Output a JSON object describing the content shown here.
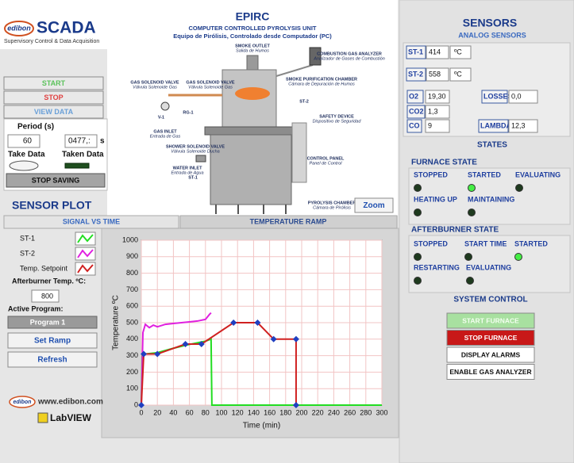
{
  "header": {
    "brand": "edibon",
    "title": "SCADA",
    "subtitle": "Supervisory Control & Data Acquisition"
  },
  "controls": {
    "start": "START",
    "stop": "STOP",
    "view_data": "VIEW DATA",
    "period_label": "Period (s)",
    "period_value": "60",
    "elapsed_value": "0477,:",
    "elapsed_unit": "s",
    "take_data": "Take Data",
    "taken_data": "Taken Data",
    "stop_saving": "STOP SAVING"
  },
  "diagram": {
    "title": "EPIRC",
    "subtitle": "COMPUTER CONTROLLED PYROLYSIS UNIT",
    "subtitle_es": "Equipo de Pirólisis, Controlado desde Computador (PC)",
    "labels": [
      {
        "en": "SMOKE OUTLET",
        "es": "Salida de Humos"
      },
      {
        "en": "COMBUSTION GAS ANALYZER",
        "es": "Analizador de Gases de Combustión"
      },
      {
        "en": "GAS SOLENOID VALVE",
        "es": "Válvula Solenoide Gas"
      },
      {
        "en": "GAS SOLENOID VALVE",
        "es": "Válvula Solenoide Gas"
      },
      {
        "en": "SMOKE PURIFICATION CHAMBER",
        "es": "Cámara de Depuración de Humos"
      },
      {
        "en": "ST-2"
      },
      {
        "en": "RG-1"
      },
      {
        "en": "V-1"
      },
      {
        "en": "GAS INLET",
        "es": "Entrada de Gas"
      },
      {
        "en": "SAFETY DEVICE",
        "es": "Dispositivo de Seguridad"
      },
      {
        "en": "SHOWER SOLENOID VALVE",
        "es": "Válvula Solenoide Ducha"
      },
      {
        "en": "WATER INLET",
        "es": "Entrada de Agua"
      },
      {
        "en": "ST-1"
      },
      {
        "en": "CONTROL PANEL",
        "es": "Panel de Control"
      },
      {
        "en": "PYROLYSIS CHAMBER",
        "es": "Cámara de Pirólisis"
      }
    ],
    "zoom": "Zoom"
  },
  "sensors": {
    "title": "SENSORS",
    "subtitle": "ANALOG SENSORS",
    "temperatures": [
      {
        "label": "ST-1",
        "value": "414",
        "unit": "ºC"
      },
      {
        "label": "ST-2",
        "value": "558",
        "unit": "ºC"
      }
    ],
    "gas": [
      {
        "label": "O2",
        "value": "19,30"
      },
      {
        "label": "CO2",
        "value": "1,3"
      },
      {
        "label": "CO",
        "value": "9"
      },
      {
        "label": "LOSSES",
        "value": "0,0"
      },
      {
        "label": "LAMBDA",
        "value": "12,3"
      }
    ],
    "states_title": "STATES",
    "furnace": {
      "title": "FURNACE STATE",
      "states": [
        {
          "label": "STOPPED",
          "on": false
        },
        {
          "label": "STARTED",
          "on": true
        },
        {
          "label": "EVALUATING",
          "on": false
        },
        {
          "label": "HEATING UP",
          "on": false
        },
        {
          "label": "MAINTAINING",
          "on": false
        }
      ]
    },
    "afterburner": {
      "title": "AFTERBURNER STATE",
      "states": [
        {
          "label": "STOPPED",
          "on": false
        },
        {
          "label": "START TIME",
          "on": false
        },
        {
          "label": "STARTED",
          "on": true
        },
        {
          "label": "RESTARTING",
          "on": false
        },
        {
          "label": "EVALUATING",
          "on": false
        }
      ]
    },
    "system_control": {
      "title": "SYSTEM CONTROL",
      "buttons": [
        "START FURNACE",
        "STOP FURNACE",
        "DISPLAY ALARMS",
        "ENABLE GAS ANALYZER"
      ]
    }
  },
  "sensor_plot": {
    "title": "SENSOR PLOT",
    "tabs": [
      "SIGNAL VS TIME",
      "TEMPERATURE RAMP"
    ],
    "afterburner_label": "Afterburner Temp. ºC:",
    "afterburner_value": "800",
    "active_program_label": "Active Program:",
    "program": "Program 1",
    "set_ramp": "Set Ramp",
    "refresh": "Refresh"
  },
  "footer": {
    "brand": "edibon",
    "website": "www.edibon.com",
    "software": "LabVIEW"
  },
  "chart_data": {
    "type": "line",
    "xlabel": "Time (min)",
    "ylabel": "Temperature ºC",
    "xlim": [
      0,
      300
    ],
    "ylim": [
      0,
      1000
    ],
    "xticks": [
      0,
      20,
      40,
      60,
      80,
      100,
      120,
      140,
      160,
      180,
      200,
      220,
      240,
      260,
      280,
      300
    ],
    "yticks": [
      0,
      100,
      200,
      300,
      400,
      500,
      600,
      700,
      800,
      900,
      1000
    ],
    "grid": true,
    "grid_color": "#f2c4c4",
    "series": [
      {
        "name": "ST-1",
        "color": "#22dd22",
        "x": [
          0,
          1,
          5,
          20,
          40,
          60,
          80,
          87,
          88,
          150,
          200,
          250,
          300
        ],
        "values": [
          0,
          300,
          310,
          318,
          345,
          368,
          388,
          400,
          0,
          0,
          0,
          0,
          0
        ]
      },
      {
        "name": "ST-2",
        "color": "#e020e0",
        "x": [
          0,
          2,
          5,
          10,
          15,
          20,
          30,
          40,
          50,
          60,
          70,
          80,
          85,
          87
        ],
        "values": [
          0,
          440,
          490,
          470,
          485,
          475,
          490,
          495,
          500,
          505,
          510,
          520,
          550,
          560
        ]
      },
      {
        "name": "Temp. Setpoint",
        "color": "#d02020",
        "marker_color": "#2040c0",
        "x": [
          0,
          3,
          20,
          55,
          75,
          115,
          145,
          165,
          193,
          193
        ],
        "values": [
          0,
          310,
          310,
          370,
          370,
          500,
          500,
          400,
          400,
          0
        ]
      }
    ]
  }
}
